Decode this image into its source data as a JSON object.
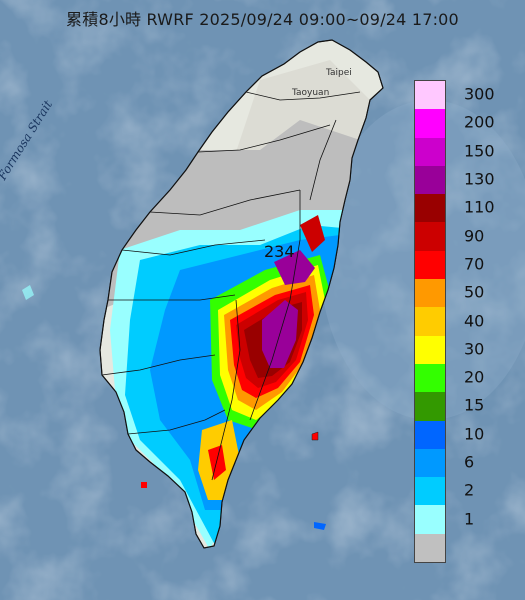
{
  "title": "累積8小時 RWRF 2025/09/24 09:00~09/24 17:00",
  "strait_label": "Formosa Strait",
  "peak_value": "234",
  "city_labels": {
    "taipei": "Taipei",
    "taoyuan": "Taoyuan"
  },
  "legend": [
    {
      "label": "300",
      "color": "#ffc8ff"
    },
    {
      "label": "200",
      "color": "#ff00ff"
    },
    {
      "label": "150",
      "color": "#cc00cc"
    },
    {
      "label": "130",
      "color": "#990099"
    },
    {
      "label": "110",
      "color": "#990000"
    },
    {
      "label": "90",
      "color": "#cc0000"
    },
    {
      "label": "70",
      "color": "#ff0000"
    },
    {
      "label": "50",
      "color": "#ff9900"
    },
    {
      "label": "40",
      "color": "#ffcc00"
    },
    {
      "label": "30",
      "color": "#ffff00"
    },
    {
      "label": "20",
      "color": "#33ff00"
    },
    {
      "label": "15",
      "color": "#339900"
    },
    {
      "label": "10",
      "color": "#0066ff"
    },
    {
      "label": "6",
      "color": "#0099ff"
    },
    {
      "label": "2",
      "color": "#00ccff"
    },
    {
      "label": "1",
      "color": "#99ffff"
    },
    {
      "label": "",
      "color": "#c0c0c0"
    }
  ]
}
